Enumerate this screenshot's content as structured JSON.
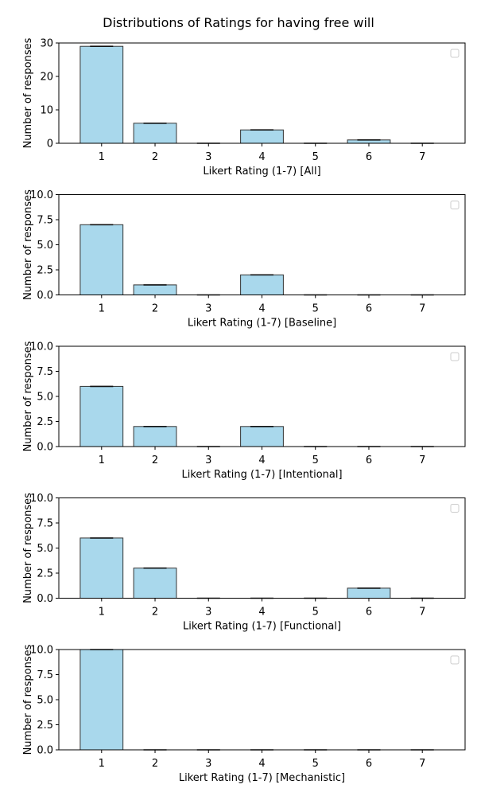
{
  "title": "Distributions of Ratings for having free will",
  "colors": {
    "bar_fill": "#a9d8ec",
    "bar_edge": "#333333",
    "axis": "#000000"
  },
  "chart_data": [
    {
      "type": "bar",
      "categories": [
        "1",
        "2",
        "3",
        "4",
        "5",
        "6",
        "7"
      ],
      "values": [
        29,
        6,
        0,
        4,
        0,
        1,
        0
      ],
      "xlabel": "Likert Rating (1-7) [All]",
      "ylabel": "Number of responses",
      "ylim": [
        0,
        30
      ],
      "yticks": [
        "0",
        "10",
        "20",
        "30"
      ],
      "grid": false,
      "legend": "top-right (empty)"
    },
    {
      "type": "bar",
      "categories": [
        "1",
        "2",
        "3",
        "4",
        "5",
        "6",
        "7"
      ],
      "values": [
        7,
        1,
        0,
        2,
        0,
        0,
        0
      ],
      "xlabel": "Likert Rating (1-7) [Baseline]",
      "ylabel": "Number of responses",
      "ylim": [
        0,
        10
      ],
      "yticks": [
        "0.0",
        "2.5",
        "5.0",
        "7.5",
        "10.0"
      ],
      "grid": false,
      "legend": "top-right (empty)"
    },
    {
      "type": "bar",
      "categories": [
        "1",
        "2",
        "3",
        "4",
        "5",
        "6",
        "7"
      ],
      "values": [
        6,
        2,
        0,
        2,
        0,
        0,
        0
      ],
      "xlabel": "Likert Rating (1-7) [Intentional]",
      "ylabel": "Number of responses",
      "ylim": [
        0,
        10
      ],
      "yticks": [
        "0.0",
        "2.5",
        "5.0",
        "7.5",
        "10.0"
      ],
      "grid": false,
      "legend": "top-right (empty)"
    },
    {
      "type": "bar",
      "categories": [
        "1",
        "2",
        "3",
        "4",
        "5",
        "6",
        "7"
      ],
      "values": [
        6,
        3,
        0,
        0,
        0,
        1,
        0
      ],
      "xlabel": "Likert Rating (1-7) [Functional]",
      "ylabel": "Number of responses",
      "ylim": [
        0,
        10
      ],
      "yticks": [
        "0.0",
        "2.5",
        "5.0",
        "7.5",
        "10.0"
      ],
      "grid": false,
      "legend": "top-right (empty)"
    },
    {
      "type": "bar",
      "categories": [
        "1",
        "2",
        "3",
        "4",
        "5",
        "6",
        "7"
      ],
      "values": [
        10,
        0,
        0,
        0,
        0,
        0,
        0
      ],
      "xlabel": "Likert Rating (1-7) [Mechanistic]",
      "ylabel": "Number of responses",
      "ylim": [
        0,
        10
      ],
      "yticks": [
        "0.0",
        "2.5",
        "5.0",
        "7.5",
        "10.0"
      ],
      "grid": false,
      "legend": "top-right (empty)"
    }
  ]
}
